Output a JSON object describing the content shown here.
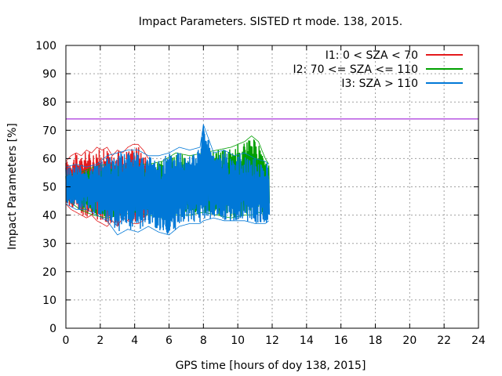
{
  "chart_data": {
    "type": "line",
    "title": "Impact Parameters. SISTED rt mode. 138, 2015.",
    "xlabel": "GPS time [hours of doy 138, 2015]",
    "ylabel": "Impact Parameters [%]",
    "xlim": [
      0,
      24
    ],
    "ylim": [
      0,
      100
    ],
    "xticks": [
      0,
      2,
      4,
      6,
      8,
      10,
      12,
      14,
      16,
      18,
      20,
      22,
      24
    ],
    "yticks": [
      0,
      10,
      20,
      30,
      40,
      50,
      60,
      70,
      80,
      90,
      100
    ],
    "grid": true,
    "legend_position": "top-right",
    "threshold": {
      "value": 74,
      "color": "#9400d3"
    },
    "series": [
      {
        "name": "I1: 0 < SZA < 70",
        "color": "#e41a1c",
        "x": [
          0.0,
          0.3,
          0.6,
          0.9,
          1.2,
          1.5,
          1.8,
          2.1,
          2.4,
          2.7,
          3.0,
          3.3,
          3.6,
          3.9,
          4.2,
          4.5,
          4.8
        ],
        "min": [
          44,
          42,
          41,
          40,
          39,
          40,
          38,
          37,
          36,
          38,
          36,
          39,
          38,
          37,
          37,
          38,
          41
        ],
        "max": [
          59,
          61,
          62,
          61,
          63,
          62,
          64,
          63,
          64,
          61,
          63,
          62,
          64,
          65,
          65,
          63,
          60
        ]
      },
      {
        "name": "I2: 70 <= SZA <= 110",
        "color": "#00a000",
        "x": [
          0.0,
          0.8,
          1.6,
          2.4,
          3.2,
          4.0,
          4.8,
          5.6,
          6.4,
          7.2,
          8.0,
          8.8,
          9.6,
          10.4,
          10.8,
          11.2,
          11.6,
          11.8
        ],
        "min": [
          46,
          42,
          40,
          39,
          40,
          41,
          40,
          39,
          40,
          40,
          41,
          40,
          39,
          40,
          40,
          41,
          40,
          42
        ],
        "max": [
          54,
          55,
          57,
          58,
          57,
          58,
          58,
          59,
          62,
          61,
          62,
          63,
          64,
          66,
          68,
          66,
          60,
          58
        ]
      },
      {
        "name": "I3: SZA > 110",
        "color": "#0078d7",
        "x": [
          0.0,
          0.6,
          1.2,
          1.8,
          2.4,
          3.0,
          3.6,
          4.2,
          4.8,
          5.4,
          6.0,
          6.6,
          7.2,
          7.8,
          8.0,
          8.6,
          9.2,
          9.8,
          10.4,
          11.0,
          11.6,
          11.8
        ],
        "min": [
          44,
          42,
          42,
          40,
          38,
          33,
          35,
          34,
          36,
          34,
          33,
          36,
          37,
          37,
          38,
          39,
          38,
          38,
          38,
          37,
          37,
          38
        ],
        "max": [
          57,
          58,
          57,
          58,
          61,
          62,
          63,
          63,
          61,
          61,
          62,
          64,
          63,
          64,
          72,
          62,
          63,
          61,
          62,
          60,
          59,
          58
        ]
      }
    ]
  }
}
